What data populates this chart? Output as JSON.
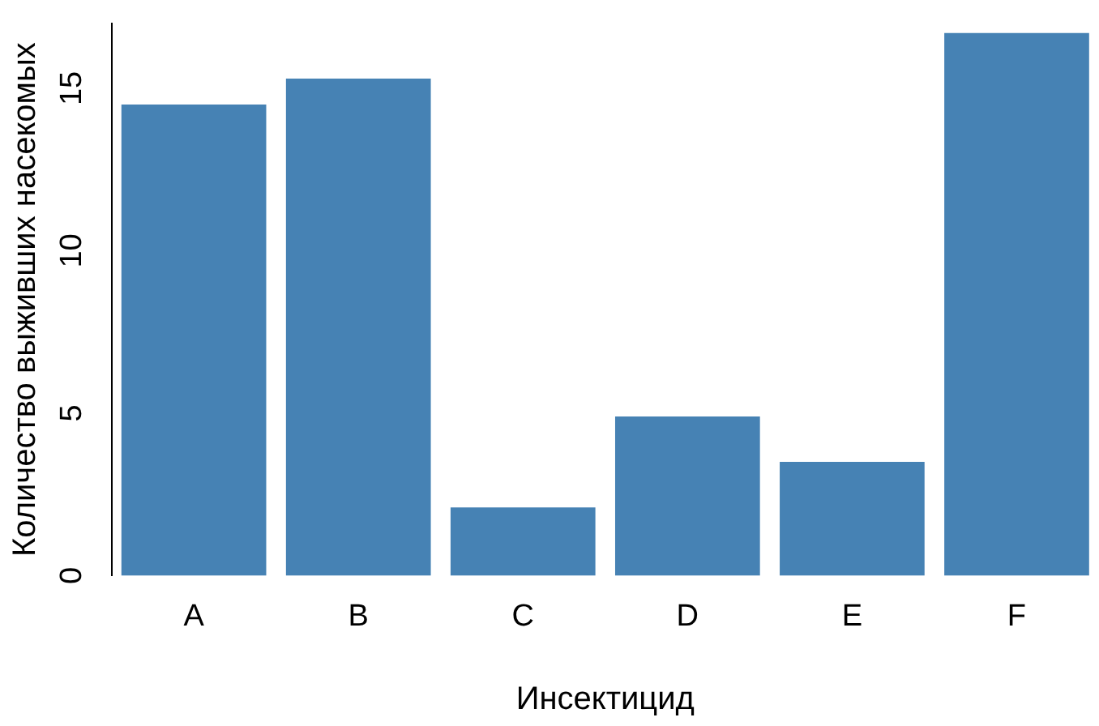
{
  "chart_data": {
    "type": "bar",
    "xlabel": "Инсектицид",
    "ylabel": "Количество выживших насекомых",
    "categories": [
      "A",
      "B",
      "C",
      "D",
      "E",
      "F"
    ],
    "values": [
      14.5,
      15.3,
      2.1,
      4.9,
      3.5,
      16.7
    ],
    "color": "#4682b4",
    "ylim": [
      0,
      17
    ],
    "yticks": [
      0,
      5,
      10,
      15
    ],
    "grid": false,
    "legend": false
  }
}
